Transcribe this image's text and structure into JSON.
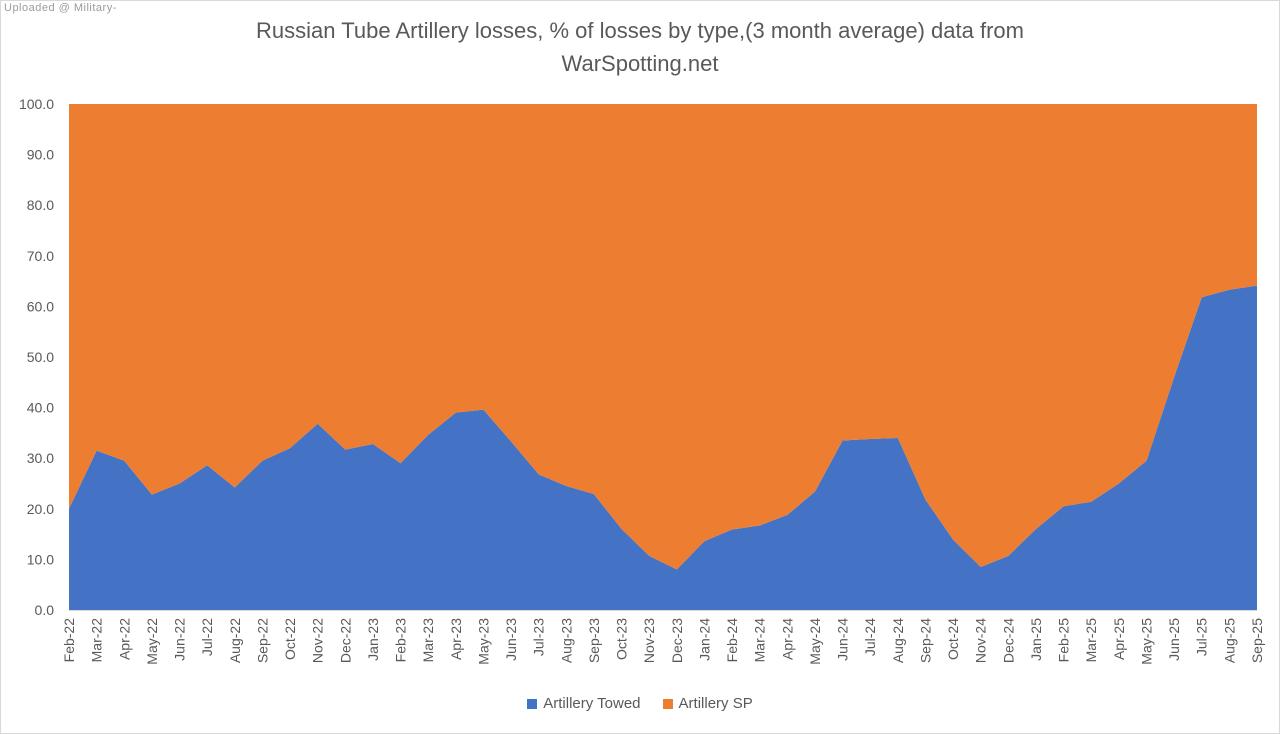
{
  "watermark": "Uploaded @ Military-",
  "chart_data": {
    "type": "area",
    "stacked": true,
    "title_line1": "Russian Tube Artillery losses, % of losses by type,(3 month average) data from",
    "title_line2": "WarSpotting.net",
    "ylim": [
      0,
      100
    ],
    "yticks": [
      "0.0",
      "10.0",
      "20.0",
      "30.0",
      "40.0",
      "50.0",
      "60.0",
      "70.0",
      "80.0",
      "90.0",
      "100.0"
    ],
    "legend_position": "bottom",
    "categories": [
      "Feb-22",
      "Mar-22",
      "Apr-22",
      "May-22",
      "Jun-22",
      "Jul-22",
      "Aug-22",
      "Sep-22",
      "Oct-22",
      "Nov-22",
      "Dec-22",
      "Jan-23",
      "Feb-23",
      "Mar-23",
      "Apr-23",
      "May-23",
      "Jun-23",
      "Jul-23",
      "Aug-23",
      "Sep-23",
      "Oct-23",
      "Nov-23",
      "Dec-23",
      "Jan-24",
      "Feb-24",
      "Mar-24",
      "Apr-24",
      "May-24",
      "Jun-24",
      "Jul-24",
      "Aug-24",
      "Sep-24",
      "Oct-24",
      "Nov-24",
      "Dec-24",
      "Jan-25",
      "Feb-25",
      "Mar-25",
      "Apr-25",
      "May-25",
      "Jun-25",
      "Jul-25",
      "Aug-25",
      "Sep-25"
    ],
    "series": [
      {
        "name": "Artillery Towed",
        "color": "#4472C4",
        "values": [
          20.0,
          31.5,
          29.5,
          22.8,
          25.0,
          28.6,
          24.2,
          29.5,
          32.0,
          36.8,
          31.7,
          32.8,
          29.0,
          34.6,
          39.0,
          39.6,
          33.3,
          26.8,
          24.5,
          22.9,
          16.0,
          10.7,
          8.0,
          13.6,
          15.9,
          16.7,
          18.8,
          23.4,
          33.5,
          33.8,
          34.0,
          21.8,
          13.9,
          8.5,
          10.7,
          16.0,
          20.5,
          21.4,
          25.0,
          29.5,
          46.0,
          61.8,
          63.3,
          64.1
        ]
      },
      {
        "name": "Artillery SP",
        "color": "#ED7D31",
        "values": [
          80.0,
          68.5,
          70.5,
          77.2,
          75.0,
          71.4,
          75.8,
          70.5,
          68.0,
          63.2,
          68.3,
          67.2,
          71.0,
          65.4,
          61.0,
          60.4,
          66.7,
          73.2,
          75.5,
          77.1,
          84.0,
          89.3,
          92.0,
          86.4,
          84.1,
          83.3,
          81.2,
          76.6,
          66.5,
          66.2,
          66.0,
          78.2,
          86.1,
          91.5,
          89.3,
          84.0,
          79.5,
          78.6,
          75.0,
          70.5,
          54.0,
          38.2,
          36.7,
          35.9
        ]
      }
    ]
  }
}
